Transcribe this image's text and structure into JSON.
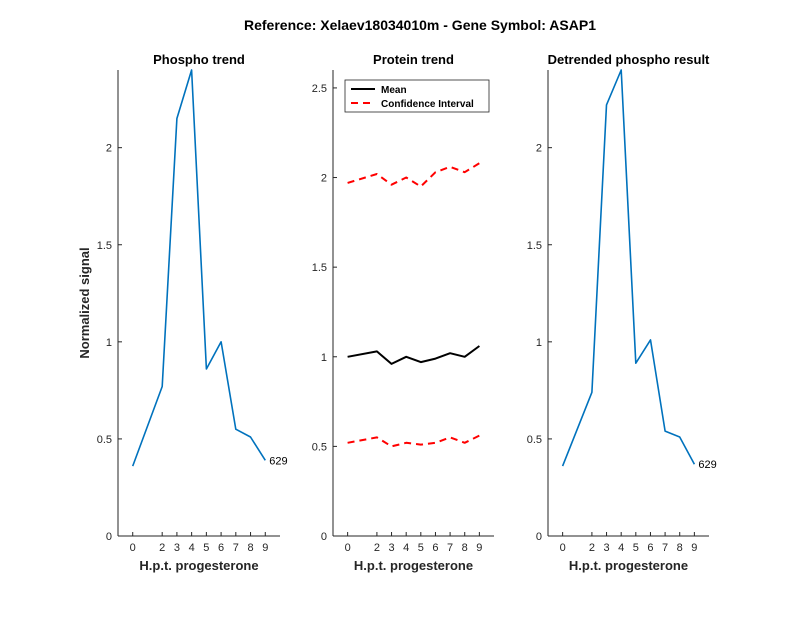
{
  "figure": {
    "suptitle": "Reference:  Xelaev18034010m - Gene Symbol:  ASAP1"
  },
  "colors": {
    "series_blue": "#0072BD",
    "mean": "#000000",
    "ci": "#FF0000"
  },
  "chart_data": [
    {
      "type": "line",
      "title": "Phospho trend",
      "xlabel": "H.p.t. progesterone",
      "ylabel": "Normalized signal",
      "xlim": [
        -1,
        10
      ],
      "ylim": [
        0,
        2.4
      ],
      "xticks": [
        0,
        2,
        3,
        4,
        5,
        6,
        7,
        8,
        9
      ],
      "yticks": [
        0,
        0.5,
        1,
        1.5,
        2
      ],
      "ytick_labels": [
        "0",
        "0.5",
        "1",
        "1.5",
        "2"
      ],
      "x": [
        0,
        2,
        3,
        4,
        5,
        6,
        7,
        8,
        9
      ],
      "series": [
        {
          "values": [
            0.36,
            0.77,
            2.15,
            2.4,
            0.86,
            1.0,
            0.55,
            0.51,
            0.39
          ]
        }
      ],
      "annotation": {
        "text": "629",
        "x": 9,
        "y": 0.39
      }
    },
    {
      "type": "line",
      "title": "Protein trend",
      "xlabel": "H.p.t. progesterone",
      "ylabel": "",
      "xlim": [
        -1,
        10
      ],
      "ylim": [
        0,
        2.6
      ],
      "xticks": [
        0,
        2,
        3,
        4,
        5,
        6,
        7,
        8,
        9
      ],
      "yticks": [
        0,
        0.5,
        1,
        1.5,
        2,
        2.5
      ],
      "ytick_labels": [
        "0",
        "0.5",
        "1",
        "1.5",
        "2",
        "2.5"
      ],
      "x": [
        0,
        2,
        3,
        4,
        5,
        6,
        7,
        8,
        9
      ],
      "series": [
        {
          "name": "Mean",
          "values": [
            1.0,
            1.03,
            0.96,
            1.0,
            0.97,
            0.99,
            1.02,
            1.0,
            1.06
          ]
        },
        {
          "name": "Confidence Interval",
          "values": [
            1.97,
            2.02,
            1.96,
            2.0,
            1.95,
            2.03,
            2.06,
            2.03,
            2.08
          ]
        },
        {
          "values": [
            0.52,
            0.55,
            0.5,
            0.52,
            0.51,
            0.52,
            0.55,
            0.52,
            0.56
          ]
        }
      ],
      "legend": {
        "position": "top-left",
        "entries": [
          "Mean",
          "Confidence Interval"
        ]
      }
    },
    {
      "type": "line",
      "title": "Detrended phospho result",
      "xlabel": "H.p.t. progesterone",
      "ylabel": "",
      "xlim": [
        -1,
        10
      ],
      "ylim": [
        0,
        2.4
      ],
      "xticks": [
        0,
        2,
        3,
        4,
        5,
        6,
        7,
        8,
        9
      ],
      "yticks": [
        0,
        0.5,
        1,
        1.5,
        2
      ],
      "ytick_labels": [
        "0",
        "0.5",
        "1",
        "1.5",
        "2"
      ],
      "x": [
        0,
        2,
        3,
        4,
        5,
        6,
        7,
        8,
        9
      ],
      "series": [
        {
          "values": [
            0.36,
            0.74,
            2.22,
            2.4,
            0.89,
            1.01,
            0.54,
            0.51,
            0.37
          ]
        }
      ],
      "annotation": {
        "text": "629",
        "x": 9,
        "y": 0.37
      }
    }
  ]
}
